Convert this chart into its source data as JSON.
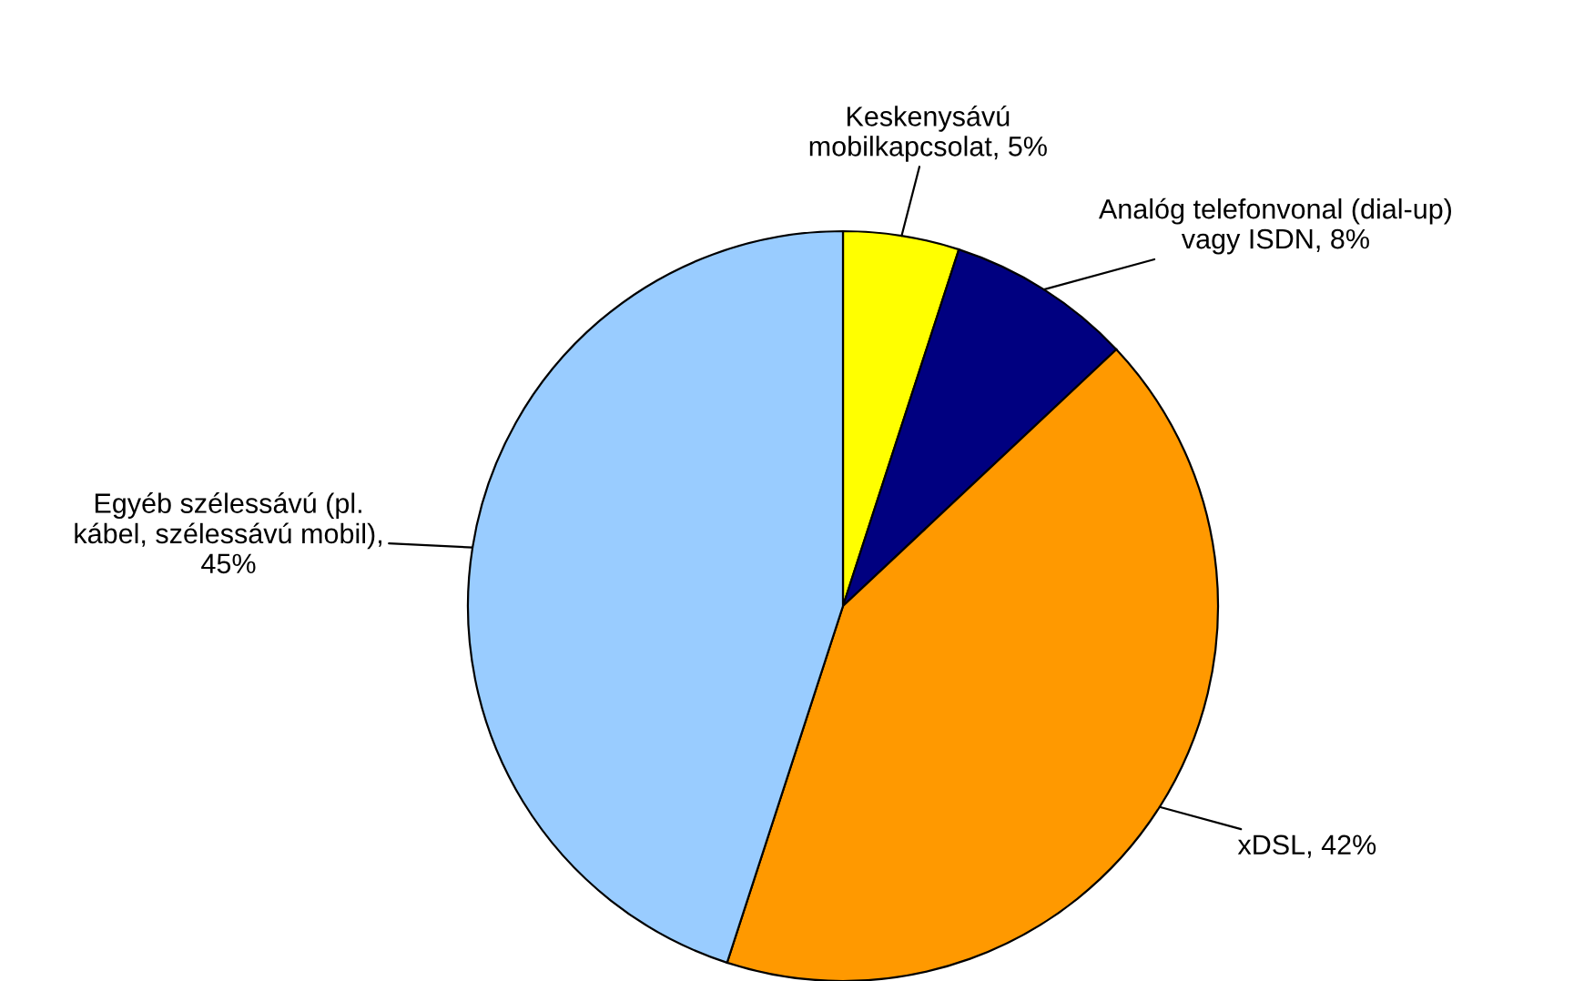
{
  "chart_data": {
    "type": "pie",
    "categories": [
      "Keskenysávú\nmobilkapcsolat, 5%",
      "Analóg telefonvonal (dial-up)\nvagy ISDN, 8%",
      "xDSL, 42%",
      "Egyéb szélessávú (pl.\nkábel, szélessávú mobil),\n45%"
    ],
    "values": [
      5,
      8,
      42,
      45
    ],
    "colors": [
      "#ffff00",
      "#000080",
      "#ff9900",
      "#99ccff"
    ]
  }
}
